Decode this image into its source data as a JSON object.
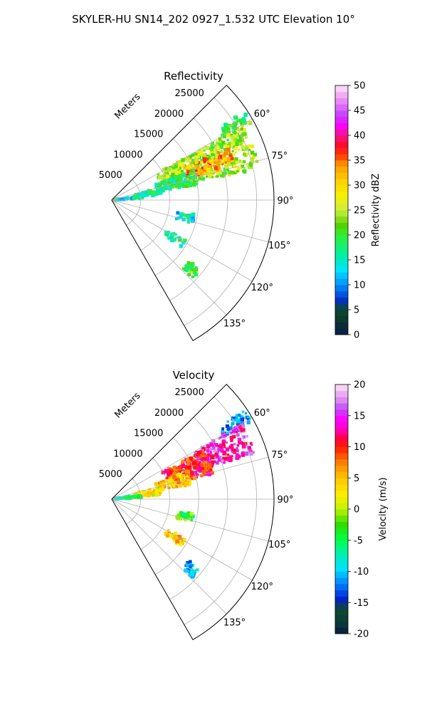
{
  "figure": {
    "suptitle": "SKYLER-HU  SN14_202  0927_1.532 UTC Elevation 10°"
  },
  "chart_data": [
    {
      "type": "heatmap",
      "subtype": "polar-sector",
      "title": "Reflectivity",
      "range_label": "Meters",
      "range_ticks": [
        5000,
        10000,
        15000,
        20000,
        25000
      ],
      "range_max": 28000,
      "azimuth_range_deg": [
        45,
        150
      ],
      "azimuth_ticks": [
        "60°",
        "75°",
        "90°",
        "105°",
        "120°",
        "135°"
      ],
      "azimuth_tick_values": [
        60,
        75,
        90,
        105,
        120,
        135
      ],
      "grid": true,
      "colorbar": {
        "label": "Reflectivity dBZ",
        "min": 0,
        "max": 50,
        "ticks": [
          0,
          5,
          10,
          15,
          20,
          25,
          30,
          35,
          40,
          45,
          50
        ]
      },
      "echo_regions": [
        {
          "az": [
            56,
            61
          ],
          "range": [
            22000,
            27500
          ],
          "value": 20
        },
        {
          "az": [
            60,
            78
          ],
          "range": [
            9000,
            26000
          ],
          "value": 24
        },
        {
          "az": [
            66,
            74
          ],
          "range": [
            13000,
            22000
          ],
          "value": 33
        },
        {
          "az": [
            70,
            80
          ],
          "range": [
            8000,
            15000
          ],
          "value": 18
        },
        {
          "az": [
            76,
            84
          ],
          "range": [
            4000,
            9000
          ],
          "value": 16
        },
        {
          "az": [
            82,
            87
          ],
          "range": [
            500,
            5500
          ],
          "value": 14
        },
        {
          "az": [
            100,
            106
          ],
          "range": [
            11500,
            14500
          ],
          "value": 14
        },
        {
          "az": [
            118,
            124
          ],
          "range": [
            11000,
            14500
          ],
          "value": 17
        },
        {
          "az": [
            128,
            134
          ],
          "range": [
            17000,
            19500
          ],
          "value": 20
        }
      ]
    },
    {
      "type": "heatmap",
      "subtype": "polar-sector",
      "title": "Velocity",
      "range_label": "Meters",
      "range_ticks": [
        5000,
        10000,
        15000,
        20000,
        25000
      ],
      "range_max": 28000,
      "azimuth_range_deg": [
        45,
        150
      ],
      "azimuth_ticks": [
        "60°",
        "75°",
        "90°",
        "105°",
        "120°",
        "135°"
      ],
      "azimuth_tick_values": [
        60,
        75,
        90,
        105,
        120,
        135
      ],
      "grid": true,
      "colorbar": {
        "label": "Velocity (m/s)",
        "min": -20,
        "max": 20,
        "ticks": [
          -20,
          -15,
          -10,
          -5,
          0,
          5,
          10,
          15,
          20
        ]
      },
      "echo_regions": [
        {
          "az": [
            56,
            61
          ],
          "range": [
            22000,
            27500
          ],
          "value": -11
        },
        {
          "az": [
            60,
            72
          ],
          "range": [
            16000,
            26000
          ],
          "value": 14
        },
        {
          "az": [
            62,
            76
          ],
          "range": [
            10000,
            18000
          ],
          "value": 10
        },
        {
          "az": [
            70,
            80
          ],
          "range": [
            8000,
            14000
          ],
          "value": 5
        },
        {
          "az": [
            76,
            85
          ],
          "range": [
            4000,
            9000
          ],
          "value": 3
        },
        {
          "az": [
            82,
            87
          ],
          "range": [
            500,
            5500
          ],
          "value": -6
        },
        {
          "az": [
            100,
            106
          ],
          "range": [
            11500,
            14500
          ],
          "value": -3
        },
        {
          "az": [
            118,
            124
          ],
          "range": [
            11000,
            14500
          ],
          "value": 5
        },
        {
          "az": [
            128,
            134
          ],
          "range": [
            17000,
            19500
          ],
          "value": -11
        }
      ]
    }
  ]
}
